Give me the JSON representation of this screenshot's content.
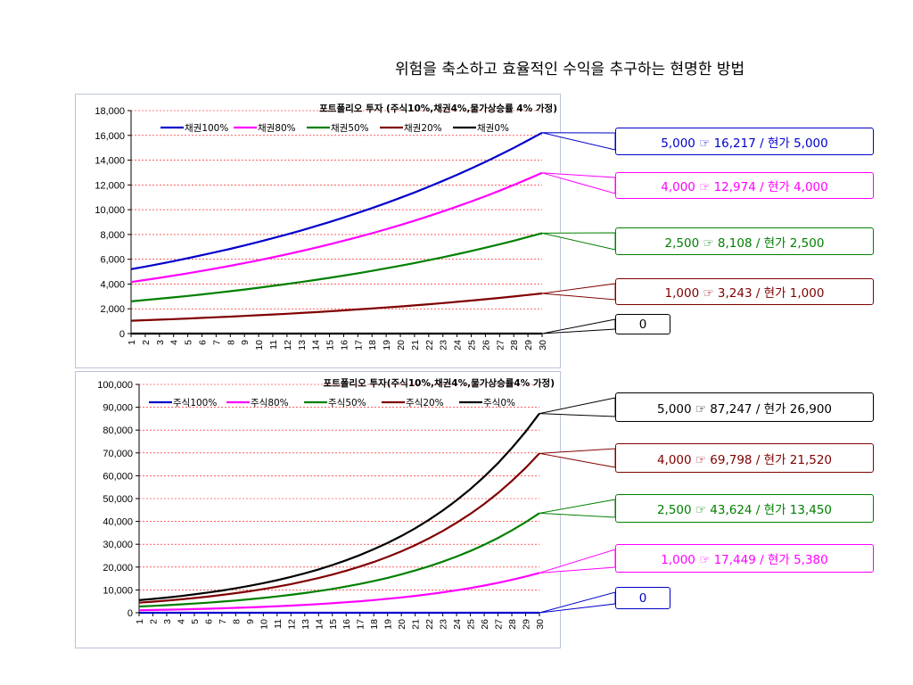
{
  "slide_title": "위험을 축소하고 효율적인 수익을 추구하는 현명한 방법",
  "colors": {
    "blue": "#0000cc",
    "magenta": "#ff00ff",
    "green": "#008000",
    "darkred": "#800000",
    "black": "#000000",
    "gridline": "#ff0000"
  },
  "chart_data": [
    {
      "type": "line",
      "title": "포트폴리오 투자 (주식10%,채권4%,물가상승률 4% 가정)",
      "xlabel": "",
      "ylabel": "",
      "x": [
        1,
        2,
        3,
        4,
        5,
        6,
        7,
        8,
        9,
        10,
        11,
        12,
        13,
        14,
        15,
        16,
        17,
        18,
        19,
        20,
        21,
        22,
        23,
        24,
        25,
        26,
        27,
        28,
        29,
        30
      ],
      "ylim": [
        0,
        18000
      ],
      "yticks": [
        0,
        2000,
        4000,
        6000,
        8000,
        10000,
        12000,
        14000,
        16000,
        18000
      ],
      "ytick_labels": [
        "0",
        "2,000",
        "4,000",
        "6,000",
        "8,000",
        "10,000",
        "12,000",
        "14,000",
        "16,000",
        "18,000"
      ],
      "grid": "horizontal dashed",
      "legend_position": "top",
      "series": [
        {
          "name": "채권100%",
          "color": "#0000cc",
          "start": 5200,
          "end": 16217
        },
        {
          "name": "채권80%",
          "color": "#ff00ff",
          "start": 4160,
          "end": 12974
        },
        {
          "name": "채권50%",
          "color": "#008000",
          "start": 2600,
          "end": 8108
        },
        {
          "name": "채권20%",
          "color": "#800000",
          "start": 1040,
          "end": 3243
        },
        {
          "name": "채권0%",
          "color": "#000000",
          "start": 0,
          "end": 0
        }
      ],
      "callouts": [
        {
          "text": "5,000 ☞ 16,217 / 현가 5,000",
          "color": "#0000cc",
          "series": 0
        },
        {
          "text": "4,000 ☞ 12,974 / 현가 4,000",
          "color": "#ff00ff",
          "series": 1
        },
        {
          "text": "2,500 ☞ 8,108 / 현가 2,500",
          "color": "#008000",
          "series": 2
        },
        {
          "text": "1,000 ☞ 3,243 / 현가 1,000",
          "color": "#800000",
          "series": 3
        },
        {
          "text": "0",
          "color": "#000000",
          "series": 4
        }
      ]
    },
    {
      "type": "line",
      "title": "포트폴리오 투자(주식10%,채권4%,물가상승률4% 가정)",
      "xlabel": "",
      "ylabel": "",
      "x": [
        1,
        2,
        3,
        4,
        5,
        6,
        7,
        8,
        9,
        10,
        11,
        12,
        13,
        14,
        15,
        16,
        17,
        18,
        19,
        20,
        21,
        22,
        23,
        24,
        25,
        26,
        27,
        28,
        29,
        30
      ],
      "ylim": [
        0,
        100000
      ],
      "yticks": [
        0,
        10000,
        20000,
        30000,
        40000,
        50000,
        60000,
        70000,
        80000,
        90000,
        100000
      ],
      "ytick_labels": [
        "0",
        "10,000",
        "20,000",
        "30,000",
        "40,000",
        "50,000",
        "60,000",
        "70,000",
        "80,000",
        "90,000",
        "100,000"
      ],
      "grid": "horizontal dashed",
      "legend_position": "top",
      "series": [
        {
          "name": "주식100%",
          "color": "#0000cc",
          "start": 0,
          "end": 0
        },
        {
          "name": "주식80%",
          "color": "#ff00ff",
          "start": 1100,
          "end": 17449
        },
        {
          "name": "주식50%",
          "color": "#008000",
          "start": 2750,
          "end": 43624
        },
        {
          "name": "주식20%",
          "color": "#800000",
          "start": 4400,
          "end": 69798
        },
        {
          "name": "주식0%",
          "color": "#000000",
          "start": 5500,
          "end": 87247
        }
      ],
      "callouts": [
        {
          "text": "5,000 ☞ 87,247 / 현가 26,900",
          "color": "#000000",
          "series": 4
        },
        {
          "text": "4,000 ☞ 69,798 / 현가 21,520",
          "color": "#800000",
          "series": 3
        },
        {
          "text": "2,500 ☞ 43,624 / 현가 13,450",
          "color": "#008000",
          "series": 2
        },
        {
          "text": "1,000 ☞ 17,449 / 현가 5,380",
          "color": "#ff00ff",
          "series": 1
        },
        {
          "text": "0",
          "color": "#0000cc",
          "series": 0
        }
      ]
    }
  ]
}
